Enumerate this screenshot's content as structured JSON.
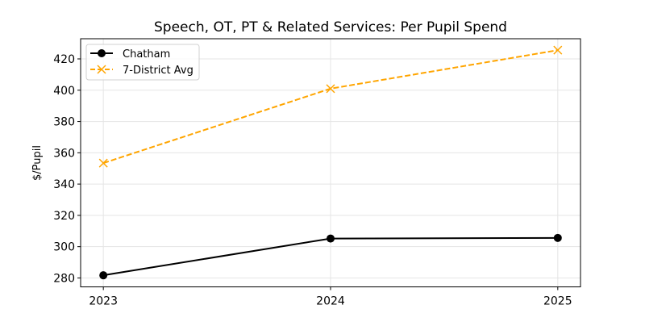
{
  "chart_data": {
    "type": "line",
    "title": "Speech, OT, PT & Related Services: Per Pupil Spend",
    "xlabel": "",
    "ylabel": "$/Pupil",
    "x": [
      "2023",
      "2024",
      "2025"
    ],
    "xlim": [
      2022.9,
      2025.1
    ],
    "ylim": [
      274.3,
      432.9
    ],
    "yticks": [
      280,
      300,
      320,
      340,
      360,
      380,
      400,
      420
    ],
    "grid": true,
    "legend_position": "top-left",
    "series": [
      {
        "name": "Chatham",
        "values": [
          281.7,
          305.2,
          305.6
        ],
        "color": "#000000",
        "marker": "circle",
        "linestyle": "solid"
      },
      {
        "name": "7-District Avg",
        "values": [
          353.4,
          401.0,
          425.6
        ],
        "color": "#FFA500",
        "marker": "x",
        "linestyle": "dashed"
      }
    ]
  }
}
